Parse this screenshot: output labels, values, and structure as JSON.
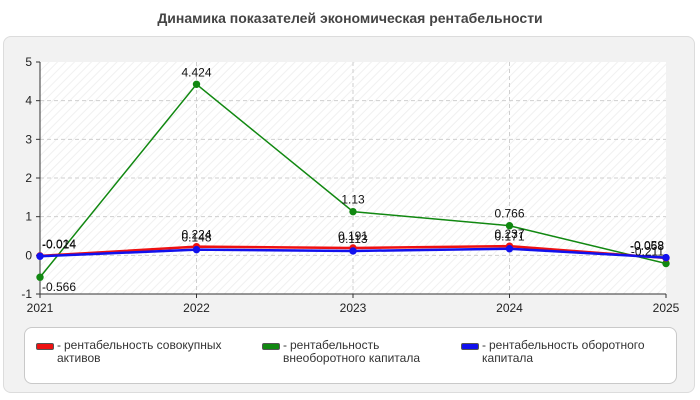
{
  "chart_data": {
    "type": "line",
    "title": "Динамика показателей экономическая рентабельности",
    "x": [
      "2021",
      "2022",
      "2023",
      "2024",
      "2025"
    ],
    "ylim": [
      -1,
      5
    ],
    "yticks": [
      "-1",
      "0",
      "1",
      "2",
      "3",
      "4",
      "5"
    ],
    "grid": true,
    "legend_position": "bottom",
    "series": [
      {
        "name": "рентабельность совокупных активов",
        "color": "#ee1111",
        "values": [
          -0.014,
          0.224,
          0.191,
          0.237,
          -0.068
        ],
        "labels": [
          "-0.014",
          "0.224",
          "0.191",
          "0.237",
          "-0.068"
        ]
      },
      {
        "name": "рентабельность внеоборотного капитала",
        "color": "#118811",
        "values": [
          -0.566,
          4.424,
          1.13,
          0.766,
          -0.211
        ],
        "labels": [
          "-0.566",
          "4.424",
          "1.13",
          "0.766",
          "-0.211"
        ]
      },
      {
        "name": "рентабельность оборотного капитала",
        "color": "#1111ee",
        "values": [
          -0.024,
          0.148,
          0.113,
          0.171,
          -0.058
        ],
        "labels": [
          "-0.024",
          "0.148",
          "0.113",
          "0.171",
          "-0.058"
        ]
      }
    ]
  }
}
